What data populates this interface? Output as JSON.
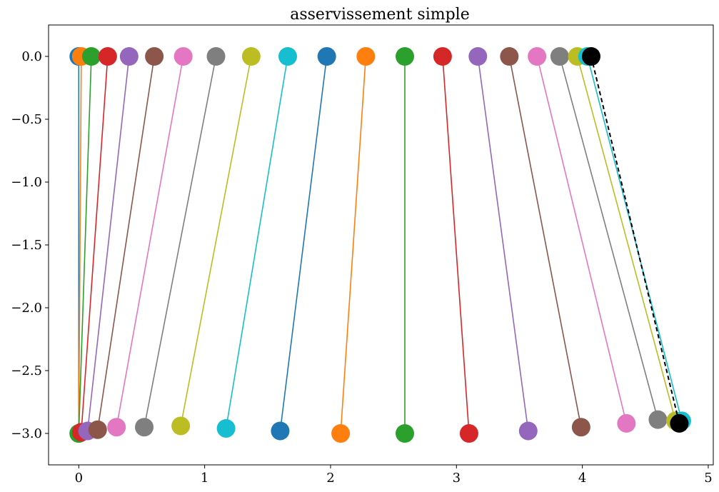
{
  "chart_data": {
    "type": "line",
    "title": "asservissement simple",
    "xlabel": "",
    "ylabel": "",
    "xlim": [
      -0.24,
      5.04
    ],
    "ylim": [
      -3.25,
      0.25
    ],
    "x_ticks": [
      0,
      1,
      2,
      3,
      4,
      5
    ],
    "x_tick_labels": [
      "0",
      "1",
      "2",
      "3",
      "4",
      "5"
    ],
    "y_ticks": [
      0.0,
      -0.5,
      -1.0,
      -1.5,
      -2.0,
      -2.5,
      -3.0
    ],
    "y_tick_labels": [
      "0.0",
      "−0.5",
      "−1.0",
      "−1.5",
      "−2.0",
      "−2.5",
      "−3.0"
    ],
    "grid": false,
    "legend": false,
    "palette": [
      "#1f77b4",
      "#ff7f0e",
      "#2ca02c",
      "#d62728",
      "#9467bd",
      "#8c564b",
      "#e377c2",
      "#7f7f7f",
      "#bcbd22",
      "#17becf"
    ],
    "series": [
      {
        "color": "#1f77b4",
        "top": [
          0.0,
          0.0
        ],
        "bottom": [
          0.0,
          -3.0
        ]
      },
      {
        "color": "#ff7f0e",
        "top": [
          0.02,
          0.0
        ],
        "bottom": [
          0.0,
          -3.0
        ]
      },
      {
        "color": "#2ca02c",
        "top": [
          0.1,
          0.0
        ],
        "bottom": [
          0.0,
          -3.0
        ]
      },
      {
        "color": "#d62728",
        "top": [
          0.23,
          0.0
        ],
        "bottom": [
          0.02,
          -2.99
        ]
      },
      {
        "color": "#9467bd",
        "top": [
          0.4,
          0.0
        ],
        "bottom": [
          0.07,
          -2.98
        ]
      },
      {
        "color": "#8c564b",
        "top": [
          0.6,
          0.0
        ],
        "bottom": [
          0.15,
          -2.97
        ]
      },
      {
        "color": "#e377c2",
        "top": [
          0.83,
          0.0
        ],
        "bottom": [
          0.3,
          -2.95
        ]
      },
      {
        "color": "#7f7f7f",
        "top": [
          1.09,
          0.0
        ],
        "bottom": [
          0.52,
          -2.95
        ]
      },
      {
        "color": "#bcbd22",
        "top": [
          1.37,
          0.0
        ],
        "bottom": [
          0.81,
          -2.94
        ]
      },
      {
        "color": "#17becf",
        "top": [
          1.66,
          0.0
        ],
        "bottom": [
          1.17,
          -2.96
        ]
      },
      {
        "color": "#1f77b4",
        "top": [
          1.97,
          0.0
        ],
        "bottom": [
          1.6,
          -2.98
        ]
      },
      {
        "color": "#ff7f0e",
        "top": [
          2.28,
          0.0
        ],
        "bottom": [
          2.08,
          -3.0
        ]
      },
      {
        "color": "#2ca02c",
        "top": [
          2.59,
          0.0
        ],
        "bottom": [
          2.59,
          -3.0
        ]
      },
      {
        "color": "#d62728",
        "top": [
          2.89,
          0.0
        ],
        "bottom": [
          3.1,
          -3.0
        ]
      },
      {
        "color": "#9467bd",
        "top": [
          3.17,
          0.0
        ],
        "bottom": [
          3.57,
          -2.98
        ]
      },
      {
        "color": "#8c564b",
        "top": [
          3.42,
          0.0
        ],
        "bottom": [
          3.99,
          -2.95
        ]
      },
      {
        "color": "#e377c2",
        "top": [
          3.64,
          0.0
        ],
        "bottom": [
          4.35,
          -2.92
        ]
      },
      {
        "color": "#7f7f7f",
        "top": [
          3.82,
          0.0
        ],
        "bottom": [
          4.6,
          -2.89
        ]
      },
      {
        "color": "#bcbd22",
        "top": [
          3.96,
          0.0
        ],
        "bottom": [
          4.74,
          -2.9
        ]
      },
      {
        "color": "#17becf",
        "top": [
          4.04,
          0.0
        ],
        "bottom": [
          4.79,
          -2.9
        ]
      },
      {
        "color": "#000000",
        "top": [
          4.07,
          0.0
        ],
        "bottom": [
          4.77,
          -2.92
        ],
        "dashed": true
      }
    ]
  }
}
